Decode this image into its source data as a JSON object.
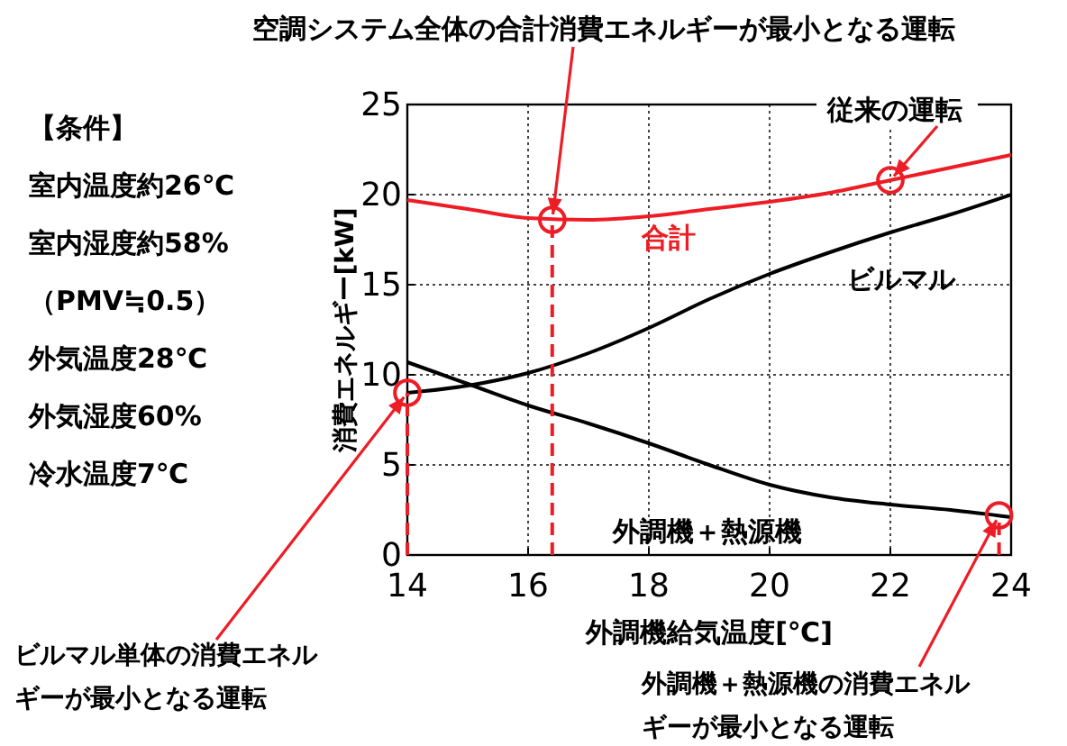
{
  "chart_data": {
    "type": "line",
    "xlabel": "外調機給気温度[℃]",
    "ylabel": "消費エネルギー[kW]",
    "x": [
      14,
      15,
      16,
      17,
      18,
      19,
      20,
      21,
      22,
      23,
      24
    ],
    "series": [
      {
        "name": "合計",
        "color": "#ee1c24",
        "values": [
          19.7,
          19.2,
          18.7,
          18.6,
          18.8,
          19.2,
          19.6,
          20.1,
          20.8,
          21.5,
          22.2
        ]
      },
      {
        "name": "ビルマル",
        "color": "#000000",
        "values": [
          9.0,
          9.4,
          10.1,
          11.2,
          12.6,
          14.2,
          15.6,
          16.8,
          17.9,
          18.9,
          20.0
        ]
      },
      {
        "name": "外調機＋熱源機",
        "color": "#000000",
        "values": [
          10.7,
          9.5,
          8.3,
          7.3,
          6.2,
          5.0,
          3.9,
          3.2,
          2.8,
          2.5,
          2.1
        ]
      },
      {
        "type": "scatter",
        "marker": "circle",
        "color": "#ee1c24",
        "x": [
          16.4,
          22,
          14,
          23.8
        ],
        "values": [
          18.6,
          20.8,
          9.0,
          2.2
        ]
      }
    ],
    "xlim": [
      14,
      24
    ],
    "xticks": [
      14,
      16,
      18,
      20,
      22,
      24
    ],
    "ylim": [
      0,
      25
    ],
    "yticks": [
      0,
      5,
      10,
      15,
      20,
      25
    ],
    "grid": true,
    "marker": "none",
    "line_style": "solid",
    "ref_lines": [
      {
        "axis": "x",
        "value": 14,
        "color": "#ee1c24",
        "line_style": "dashed"
      },
      {
        "axis": "x",
        "value": 16.4,
        "color": "#ee1c24",
        "line_style": "dashed"
      },
      {
        "axis": "x",
        "value": 23.8,
        "color": "#ee1c24",
        "line_style": "dashed"
      }
    ],
    "annotations": [
      {
        "text": "空調システム全体の合計消費エネルギーが最小となる運転",
        "x": 16.4,
        "y": 18.6
      },
      {
        "text": "従来の運転",
        "x": 22,
        "y": 20.8
      },
      {
        "text": "ビルマル単体の消費エネルギーが最小となる運転",
        "x": 14,
        "y": 9.0
      },
      {
        "text": "外調機＋熱源機の消費エネルギーが最小となる運転",
        "x": 23.8,
        "y": 2.2
      },
      "【条件】",
      "室内温度約26℃",
      "室内湿度約58%",
      "（PMV≒0.5）",
      "外気温度28℃",
      "外気湿度60%",
      "冷水温度7℃"
    ]
  }
}
